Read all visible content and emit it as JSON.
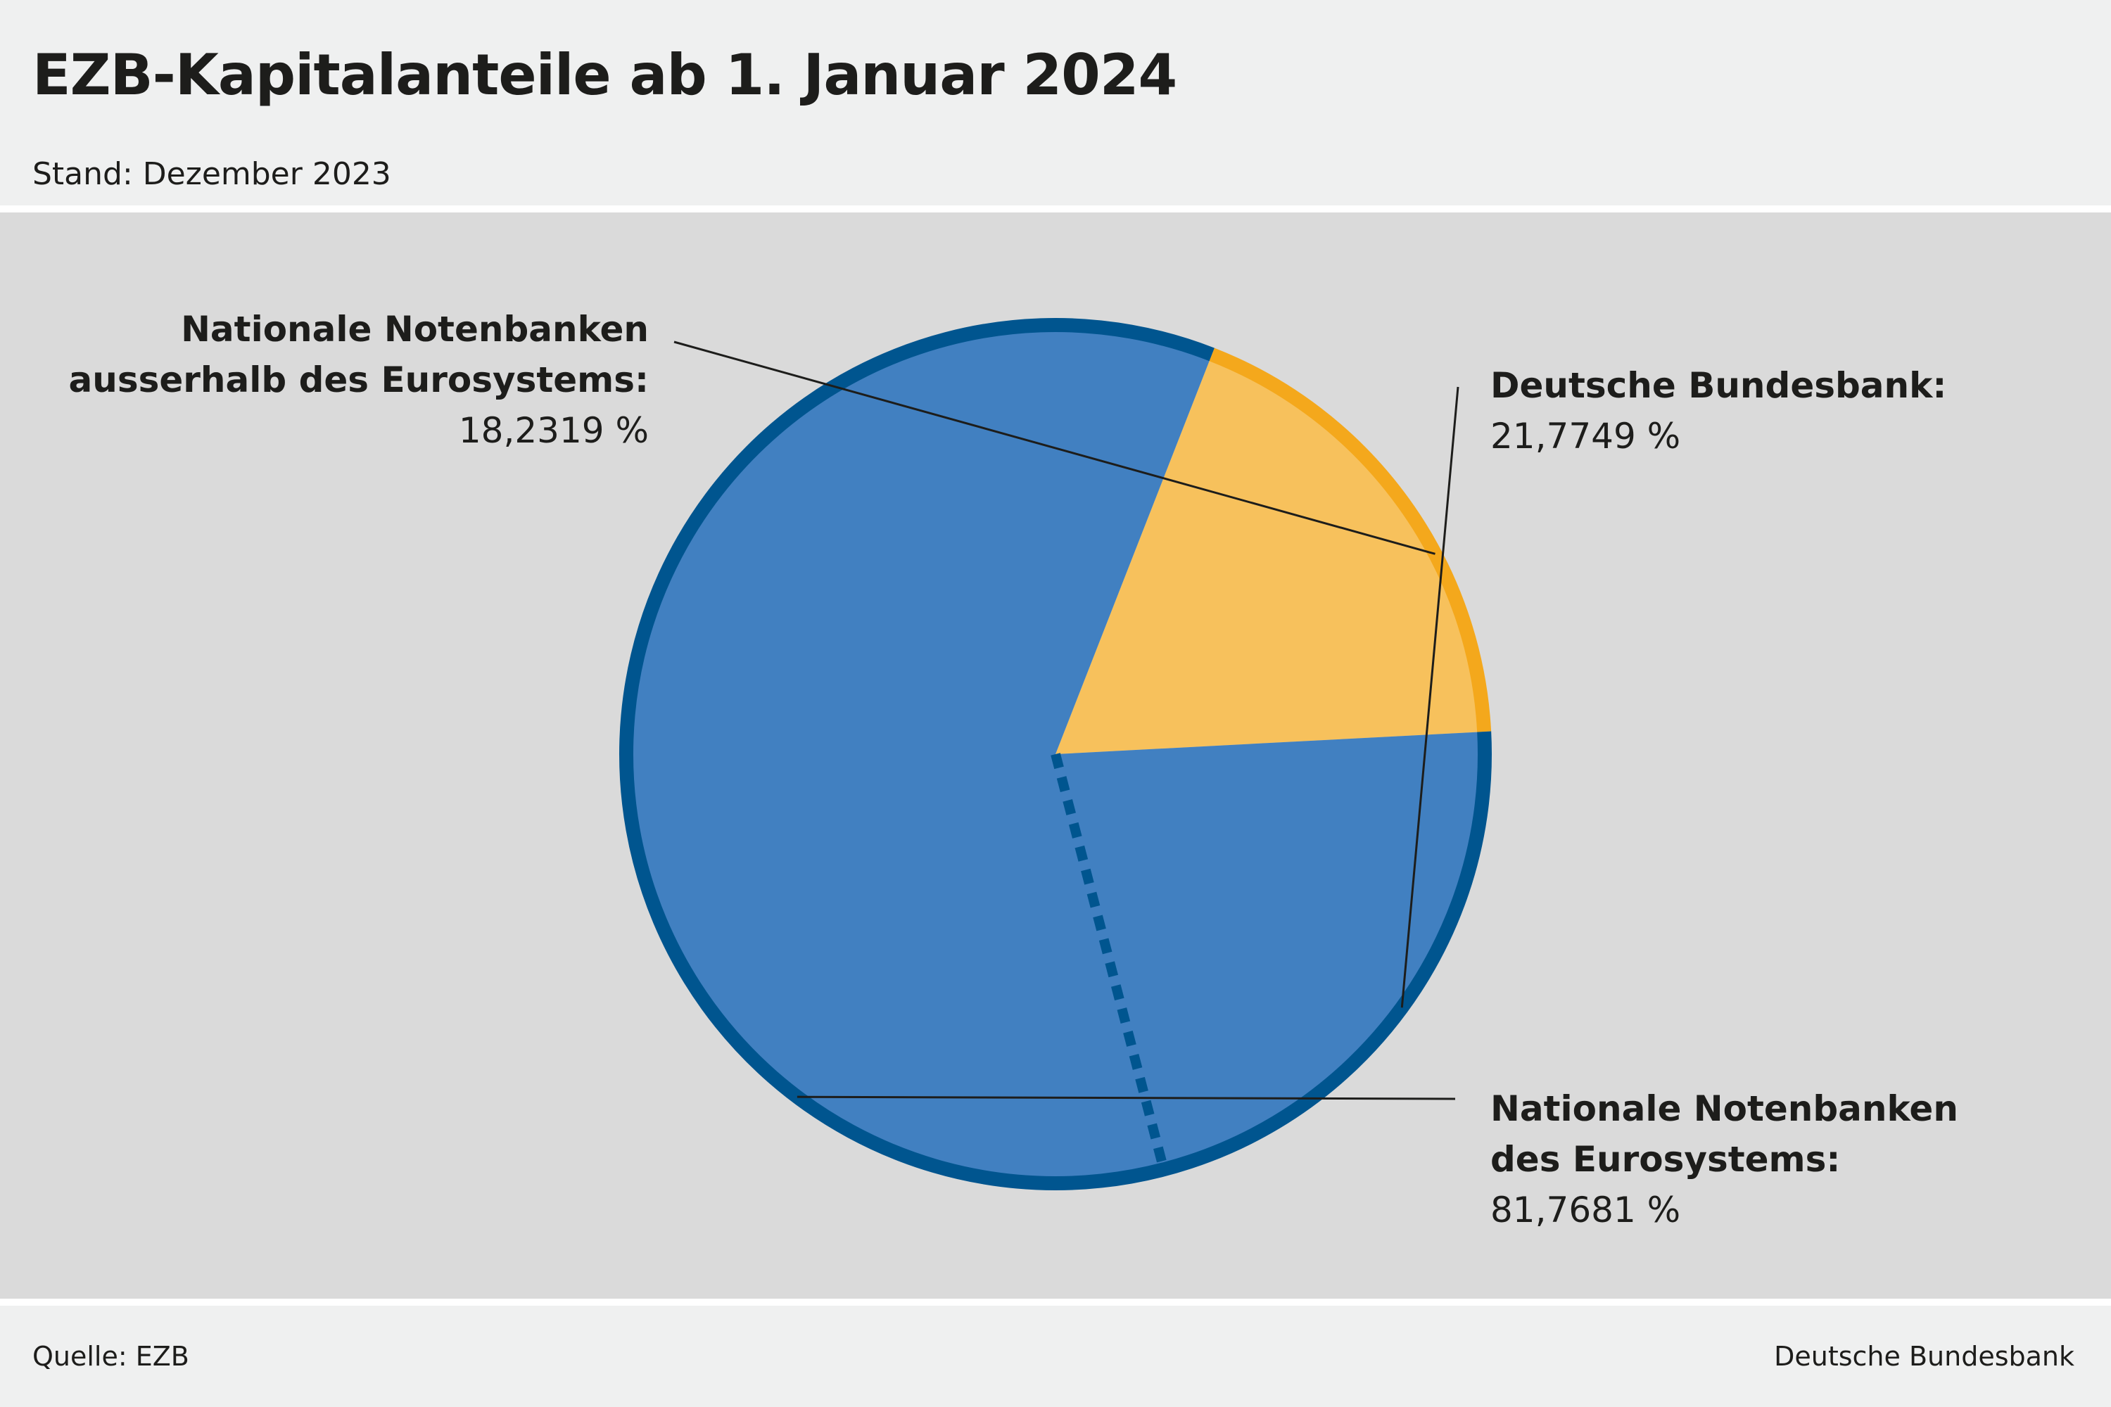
{
  "header": {
    "title": "EZB-Kapitalanteile ab 1. Januar 2024",
    "subtitle": "Stand: Dezember 2023"
  },
  "footer": {
    "source": "Quelle: EZB",
    "credit": "Deutsche Bundesbank"
  },
  "chart_data": {
    "type": "pie",
    "title": "EZB-Kapitalanteile ab 1. Januar 2024",
    "subtitle": "Stand: Dezember 2023",
    "slices": [
      {
        "label_line1": "Nationale Notenbanken",
        "label_line2": "ausserhalb des Eurosystems:",
        "value": 18.2319,
        "value_label": "18,2319 %",
        "color": "#f7c15c",
        "border_color": "#f4a81c"
      },
      {
        "label_line1": "Nationale Notenbanken",
        "label_line2": "des Eurosystems:",
        "value": 81.7681,
        "value_label": "81,7681 %",
        "color": "#4180c1",
        "border_color": "#00558f"
      }
    ],
    "sub_slice": {
      "label": "Deutsche Bundesbank:",
      "value": 21.7749,
      "value_label": "21,7749 %",
      "part_of": "Nationale Notenbanken des Eurosystems"
    },
    "legend": "none"
  }
}
